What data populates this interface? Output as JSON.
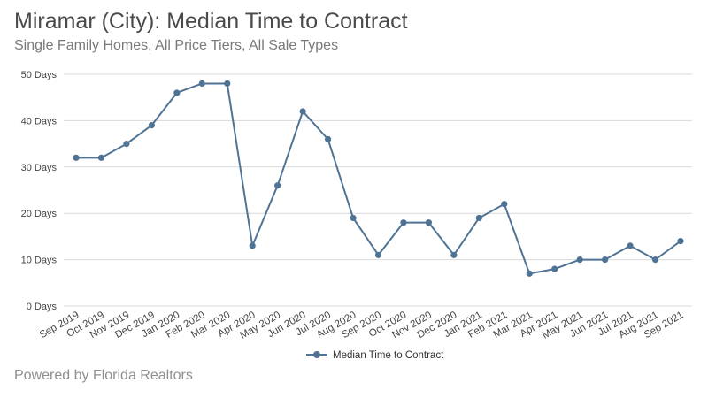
{
  "chart_data": {
    "type": "line",
    "title": "Miramar (City): Median Time to Contract",
    "subtitle": "Single Family Homes, All Price Tiers, All Sale Types",
    "categories": [
      "Sep 2019",
      "Oct 2019",
      "Nov 2019",
      "Dec 2019",
      "Jan 2020",
      "Feb 2020",
      "Mar 2020",
      "Apr 2020",
      "May 2020",
      "Jun 2020",
      "Jul 2020",
      "Aug 2020",
      "Sep 2020",
      "Oct 2020",
      "Nov 2020",
      "Dec 2020",
      "Jan 2021",
      "Feb 2021",
      "Mar 2021",
      "Apr 2021",
      "May 2021",
      "Jun 2021",
      "Jul 2021",
      "Aug 2021",
      "Sep 2021"
    ],
    "series": [
      {
        "name": "Median Time to Contract",
        "values": [
          32,
          32,
          35,
          39,
          46,
          48,
          48,
          13,
          26,
          42,
          36,
          19,
          11,
          18,
          18,
          11,
          19,
          22,
          7,
          8,
          10,
          10,
          13,
          10,
          14
        ]
      }
    ],
    "yticks": [
      "0 Days",
      "10 Days",
      "20 Days",
      "30 Days",
      "40 Days",
      "50 Days"
    ],
    "ylim": [
      0,
      50
    ],
    "grid": true,
    "legend_position": "bottom-center",
    "line_color": "#4f7394",
    "footer": "Powered by Florida Realtors"
  }
}
